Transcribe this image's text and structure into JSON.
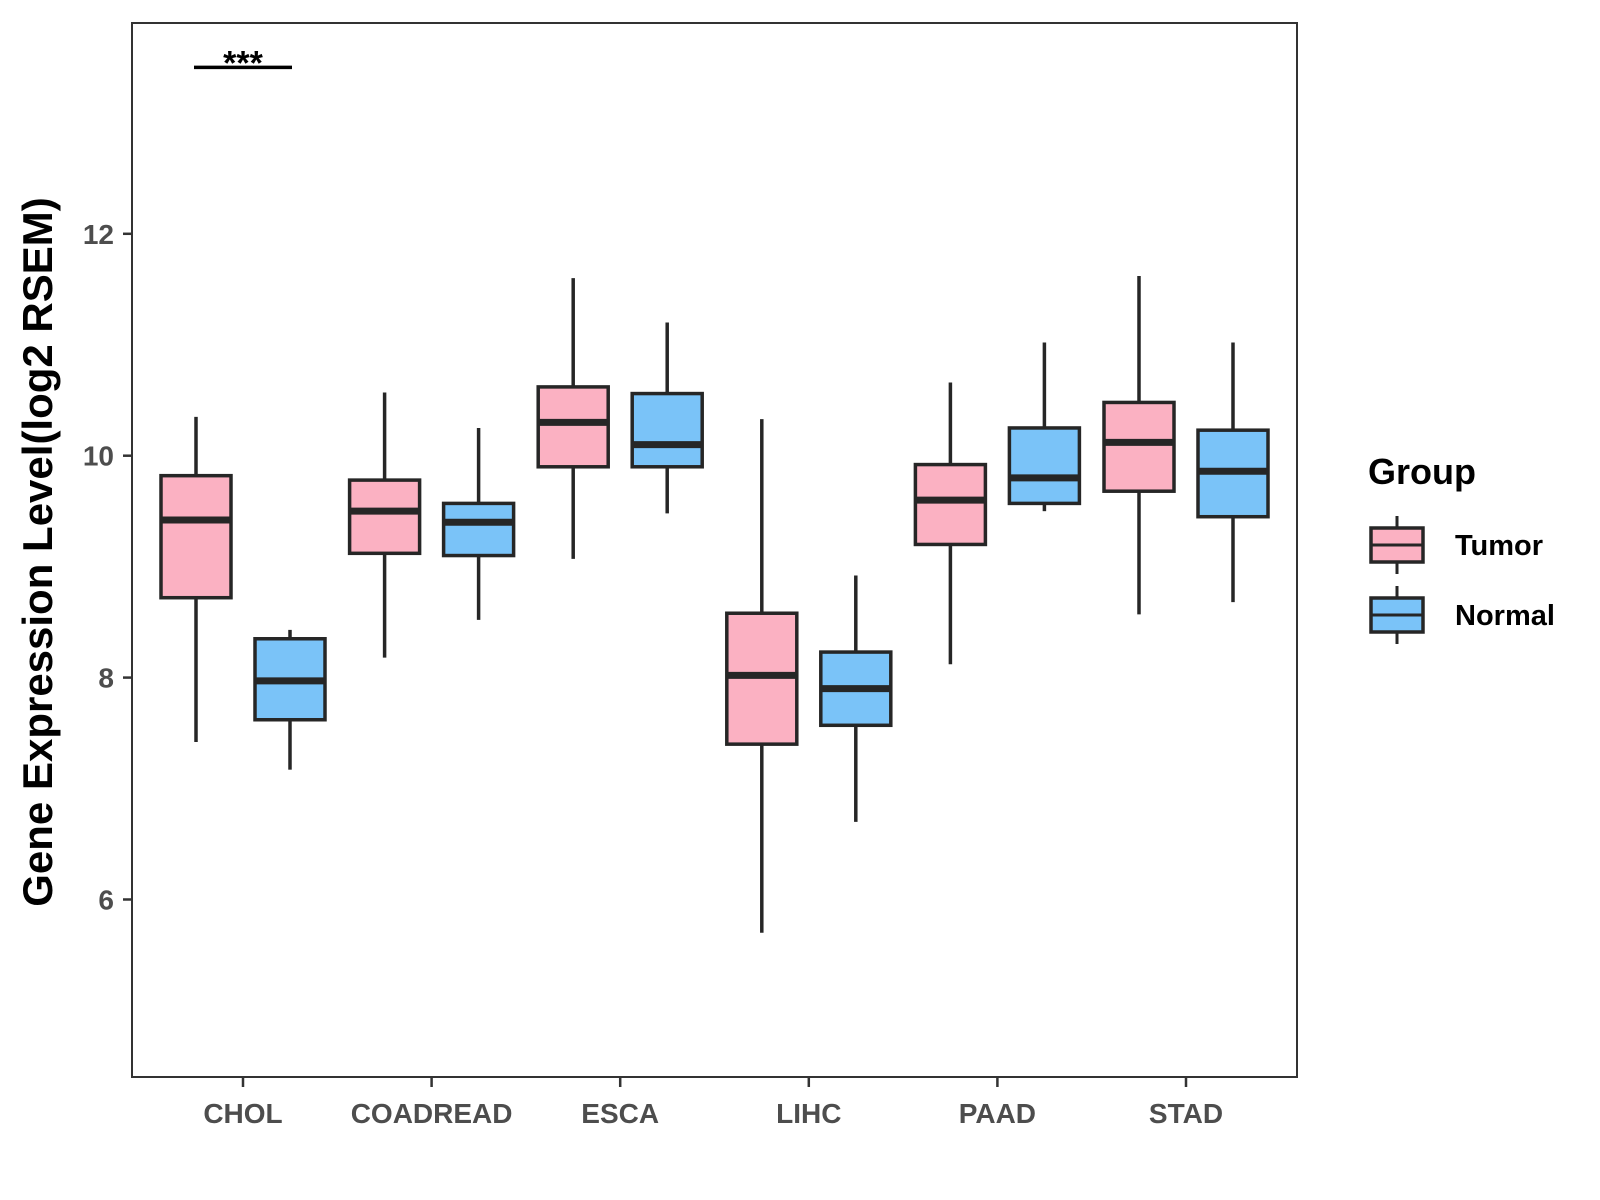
{
  "chart_data": {
    "type": "box",
    "title": "",
    "xlabel": "",
    "ylabel": "Gene Expression Level(log2 RSEM)",
    "ylim": [
      4.4,
      13.9
    ],
    "yticks": [
      6,
      8,
      10,
      12
    ],
    "categories": [
      "CHOL",
      "COADREAD",
      "ESCA",
      "LIHC",
      "PAAD",
      "STAD"
    ],
    "legend": {
      "title": "Group",
      "position": "right"
    },
    "series": [
      {
        "name": "Tumor",
        "color": "#FBB1C2",
        "boxes": [
          {
            "category": "CHOL",
            "min": 7.42,
            "q1": 8.72,
            "median": 9.42,
            "q3": 9.82,
            "max": 10.35
          },
          {
            "category": "COADREAD",
            "min": 8.18,
            "q1": 9.12,
            "median": 9.5,
            "q3": 9.78,
            "max": 10.57
          },
          {
            "category": "ESCA",
            "min": 9.07,
            "q1": 9.9,
            "median": 10.3,
            "q3": 10.62,
            "max": 11.6
          },
          {
            "category": "LIHC",
            "min": 5.7,
            "q1": 7.4,
            "median": 8.02,
            "q3": 8.58,
            "max": 10.33
          },
          {
            "category": "PAAD",
            "min": 8.12,
            "q1": 9.2,
            "median": 9.6,
            "q3": 9.92,
            "max": 10.66
          },
          {
            "category": "STAD",
            "min": 8.57,
            "q1": 9.68,
            "median": 10.12,
            "q3": 10.48,
            "max": 11.62
          }
        ]
      },
      {
        "name": "Normal",
        "color": "#7AC3F8",
        "boxes": [
          {
            "category": "CHOL",
            "min": 7.17,
            "q1": 7.62,
            "median": 7.97,
            "q3": 8.35,
            "max": 8.43
          },
          {
            "category": "COADREAD",
            "min": 8.52,
            "q1": 9.1,
            "median": 9.4,
            "q3": 9.57,
            "max": 10.25
          },
          {
            "category": "ESCA",
            "min": 9.48,
            "q1": 9.9,
            "median": 10.1,
            "q3": 10.56,
            "max": 11.2
          },
          {
            "category": "LIHC",
            "min": 6.7,
            "q1": 7.57,
            "median": 7.9,
            "q3": 8.23,
            "max": 8.92
          },
          {
            "category": "PAAD",
            "min": 9.5,
            "q1": 9.57,
            "median": 9.8,
            "q3": 10.25,
            "max": 11.02
          },
          {
            "category": "STAD",
            "min": 8.68,
            "q1": 9.45,
            "median": 9.86,
            "q3": 10.23,
            "max": 11.02
          }
        ]
      }
    ],
    "annotations": [
      {
        "text": "***",
        "category": "CHOL",
        "y": 13.5
      }
    ]
  }
}
